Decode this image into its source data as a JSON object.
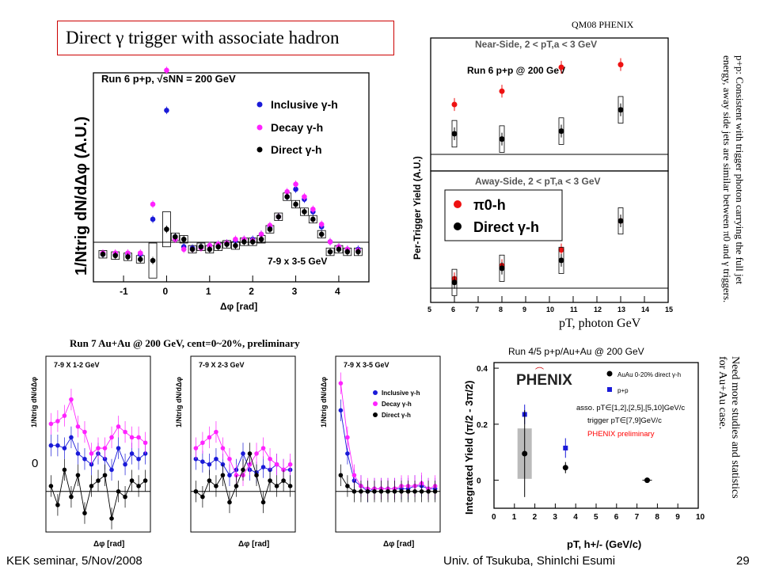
{
  "slide": {
    "title": "Direct γ trigger with associate hadron",
    "conference": "QM08 PHENIX",
    "footer_left": "KEK seminar, 5/Nov/2008",
    "footer_center": "Univ. of Tsukuba, ShinIchi Esumi",
    "page_number": "29",
    "note_right": "p+p:  Consistent with trigger photon carrying the full jet energy,   away side jets are similar between π0 and γ triggers.",
    "note_bottom_right": "Need more studies and statistics for Au+Au case.",
    "au_label": "Run 7 Au+Au @ 200 GeV, cent=0~20%, preliminary",
    "run45_label": "Run 4/5 p+p/Au+Au @ 200 GeV",
    "pt_photon_label": "pT, photon GeV",
    "zero_label": "0"
  },
  "colors": {
    "inclusive": "#1a1ad8",
    "decay": "#ff22ff",
    "direct": "#000000",
    "pi0": "#ee1111",
    "red_box": "#cc0000",
    "preliminary": "#ff0000"
  },
  "chart_data": [
    {
      "type": "scatter",
      "title": "Run 6 p+p, √sNN = 200 GeV",
      "xlabel": "Δφ [rad]",
      "ylabel": "1/Ntrig dN/dΔφ (A.U.)",
      "xlim": [
        -1.7,
        4.7
      ],
      "ylim": [
        -0.22,
        1.45
      ],
      "xticks": [
        -1,
        0,
        1,
        2,
        3,
        4
      ],
      "annotation": "7-9 x 3-5 GeV",
      "legend_position": "top-right",
      "x": [
        -1.48,
        -1.19,
        -0.9,
        -0.61,
        -0.32,
        0.0,
        0.2,
        0.4,
        0.6,
        0.8,
        1.0,
        1.2,
        1.4,
        1.6,
        1.8,
        2.0,
        2.2,
        2.4,
        2.6,
        2.8,
        3.0,
        3.2,
        3.4,
        3.6,
        3.8,
        4.0,
        4.2,
        4.45
      ],
      "series": [
        {
          "name": "Inclusive γ-h",
          "values": [
            0,
            0,
            0,
            0,
            0.28,
            1.15,
            0.14,
            0.06,
            0.05,
            0.06,
            0.07,
            0.08,
            0.09,
            0.11,
            0.12,
            0.12,
            0.16,
            0.22,
            0.3,
            0.46,
            0.52,
            0.44,
            0.34,
            0.22,
            0.1,
            0.06,
            0.04,
            0.04
          ]
        },
        {
          "name": "Decay γ-h",
          "values": [
            0.01,
            0.01,
            0.01,
            0.01,
            0.4,
            1.47,
            0.12,
            0.04,
            0.04,
            0.05,
            0.07,
            0.08,
            0.09,
            0.12,
            0.12,
            0.11,
            0.16,
            0.23,
            0.3,
            0.5,
            0.56,
            0.46,
            0.36,
            0.24,
            0.1,
            0.06,
            0.04,
            0.03
          ]
        },
        {
          "name": "Direct γ-h",
          "values": [
            0,
            -0.01,
            -0.02,
            -0.04,
            -0.05,
            0.2,
            0.14,
            0.12,
            0.04,
            0.06,
            0.04,
            0.06,
            0.08,
            0.07,
            0.1,
            0.1,
            0.12,
            0.2,
            0.3,
            0.46,
            0.4,
            0.34,
            0.28,
            0.16,
            0.02,
            0.04,
            0.02,
            0.02
          ]
        }
      ]
    },
    {
      "type": "scatter",
      "title": "Near-Side, 2 < pT,a < 3 GeV",
      "subtitle": "Run 6 p+p @ 200 GeV",
      "ylabel": "Per-Trigger Yield (A.U.)",
      "xlim": [
        5,
        15
      ],
      "ylim": [
        -0.3,
        2.2
      ],
      "x": [
        6,
        8,
        10.5,
        13
      ],
      "series": [
        {
          "name": "π0-h",
          "values": [
            0.95,
            1.2,
            1.65,
            1.7
          ]
        },
        {
          "name": "Direct γ-h",
          "values": [
            0.4,
            0.3,
            0.45,
            0.85
          ]
        }
      ]
    },
    {
      "type": "scatter",
      "title": "Away-Side, 2 < pT,a < 3 GeV",
      "xlabel": "pT, photon GeV",
      "xlim": [
        5,
        15
      ],
      "ylim": [
        -0.3,
        2.2
      ],
      "xticks": [
        5,
        6,
        7,
        8,
        9,
        10,
        11,
        12,
        13,
        14,
        15
      ],
      "legend_position": "top-left",
      "x": [
        6,
        8,
        10.5,
        13
      ],
      "series": [
        {
          "name": "π0-h",
          "values": [
            0.15,
            0.4,
            0.7,
            1.25
          ]
        },
        {
          "name": "Direct γ-h",
          "values": [
            0.08,
            0.35,
            0.5,
            1.25
          ]
        }
      ]
    },
    {
      "type": "line",
      "annotation": "7-9 X 1-2 GeV",
      "xlabel": "Δφ [rad]",
      "ylabel": "1/Ntrig dN/dΔφ",
      "ylim": [
        -0.15,
        0.5
      ],
      "x": [
        -1.2,
        -0.8,
        -0.4,
        0,
        0.4,
        0.8,
        1.2,
        1.6,
        2.0,
        2.4,
        2.8,
        3.2,
        3.6,
        4.0,
        4.4
      ],
      "series": [
        {
          "name": "Inclusive γ-h",
          "values": [
            0.17,
            0.17,
            0.16,
            0.2,
            0.14,
            0.12,
            0.1,
            0.14,
            0.12,
            0.08,
            0.16,
            0.1,
            0.14,
            0.12,
            0.14
          ]
        },
        {
          "name": "Decay γ-h",
          "values": [
            0.25,
            0.26,
            0.28,
            0.34,
            0.24,
            0.22,
            0.14,
            0.16,
            0.16,
            0.2,
            0.24,
            0.22,
            0.2,
            0.2,
            0.18
          ]
        },
        {
          "name": "Direct γ-h",
          "values": [
            0.02,
            -0.05,
            0.08,
            -0.02,
            0.06,
            -0.08,
            0.02,
            0.04,
            0.06,
            -0.1,
            0.0,
            -0.02,
            0.04,
            0.02,
            0.04
          ]
        }
      ]
    },
    {
      "type": "line",
      "annotation": "7-9 X 2-3 GeV",
      "xlabel": "Δφ [rad]",
      "ylabel": "1/Ntrig dN/dΔφ",
      "ylim": [
        -0.15,
        0.5
      ],
      "x": [
        -1.2,
        -0.8,
        -0.4,
        0,
        0.4,
        0.8,
        1.2,
        1.6,
        2.0,
        2.4,
        2.8,
        3.2,
        3.6,
        4.0,
        4.4
      ],
      "series": [
        {
          "name": "Inclusive γ-h",
          "values": [
            0.12,
            0.11,
            0.1,
            0.12,
            0.1,
            0.06,
            0.08,
            0.14,
            0.08,
            0.07,
            0.09,
            0.08,
            0.1,
            0.08,
            0.08
          ]
        },
        {
          "name": "Decay γ-h",
          "values": [
            0.16,
            0.18,
            0.2,
            0.22,
            0.16,
            0.12,
            0.06,
            0.06,
            0.1,
            0.14,
            0.16,
            0.12,
            0.1,
            0.08,
            0.1
          ]
        },
        {
          "name": "Direct γ-h",
          "values": [
            0.0,
            -0.02,
            0.04,
            0.02,
            0.06,
            -0.04,
            0.02,
            0.08,
            0.14,
            0.06,
            -0.04,
            0.04,
            0.02,
            0.04,
            0.02
          ]
        }
      ]
    },
    {
      "type": "line",
      "annotation": "7-9 X 3-5 GeV",
      "xlabel": "Δφ [rad]",
      "ylabel": "1/Ntrig dN/dΔφ",
      "ylim": [
        -0.15,
        0.5
      ],
      "legend_position": "top-right",
      "x": [
        -1.2,
        -0.8,
        -0.4,
        0,
        0.4,
        0.8,
        1.2,
        1.6,
        2.0,
        2.4,
        2.8,
        3.2,
        3.6,
        4.0,
        4.4
      ],
      "series": [
        {
          "name": "Inclusive γ-h",
          "values": [
            0.3,
            0.14,
            0.04,
            0.02,
            0.0,
            0.01,
            0.01,
            0.01,
            0.01,
            0.01,
            0.01,
            0.02,
            0.02,
            0.01,
            0.01
          ]
        },
        {
          "name": "Decay γ-h",
          "values": [
            0.4,
            0.2,
            0.06,
            0.02,
            0.01,
            0.01,
            0.01,
            0.01,
            0.01,
            0.02,
            0.02,
            0.02,
            0.03,
            0.01,
            0.02
          ]
        },
        {
          "name": "Direct γ-h",
          "values": [
            0.06,
            0.02,
            0.0,
            0.0,
            0.0,
            0.0,
            0.0,
            0.0,
            0.0,
            0.0,
            0.0,
            0.0,
            0.0,
            0.0,
            0.0
          ]
        }
      ]
    },
    {
      "type": "scatter",
      "ylabel": "Integrated Yield (π/2 - 3π/2)",
      "xlabel": "pT, h+/- (GeV/c)",
      "xlim": [
        0,
        10
      ],
      "ylim": [
        -0.1,
        0.42
      ],
      "xticks": [
        0,
        1,
        2,
        3,
        4,
        5,
        6,
        7,
        8,
        9,
        10
      ],
      "yticks": [
        0,
        0.2,
        0.4
      ],
      "legend_position": "top-right",
      "logo": "PHENIX",
      "legend_title": "AuAu 0-20% direct γ-h",
      "legend_pp": "p+p",
      "text_asso": "asso. pT∈[1,2],[2,5],[5,10]GeV/c",
      "text_trigger": "trigger pT∈[7,9]GeV/c",
      "text_prelim": "PHENIX preliminary",
      "series": [
        {
          "name": "AuAu 0-20% direct γ-h",
          "x": [
            1.5,
            3.5,
            7.5
          ],
          "values": [
            0.095,
            0.045,
            0.0
          ]
        },
        {
          "name": "p+p",
          "x": [
            1.5,
            3.5
          ],
          "values": [
            0.235,
            0.115
          ]
        }
      ]
    }
  ]
}
